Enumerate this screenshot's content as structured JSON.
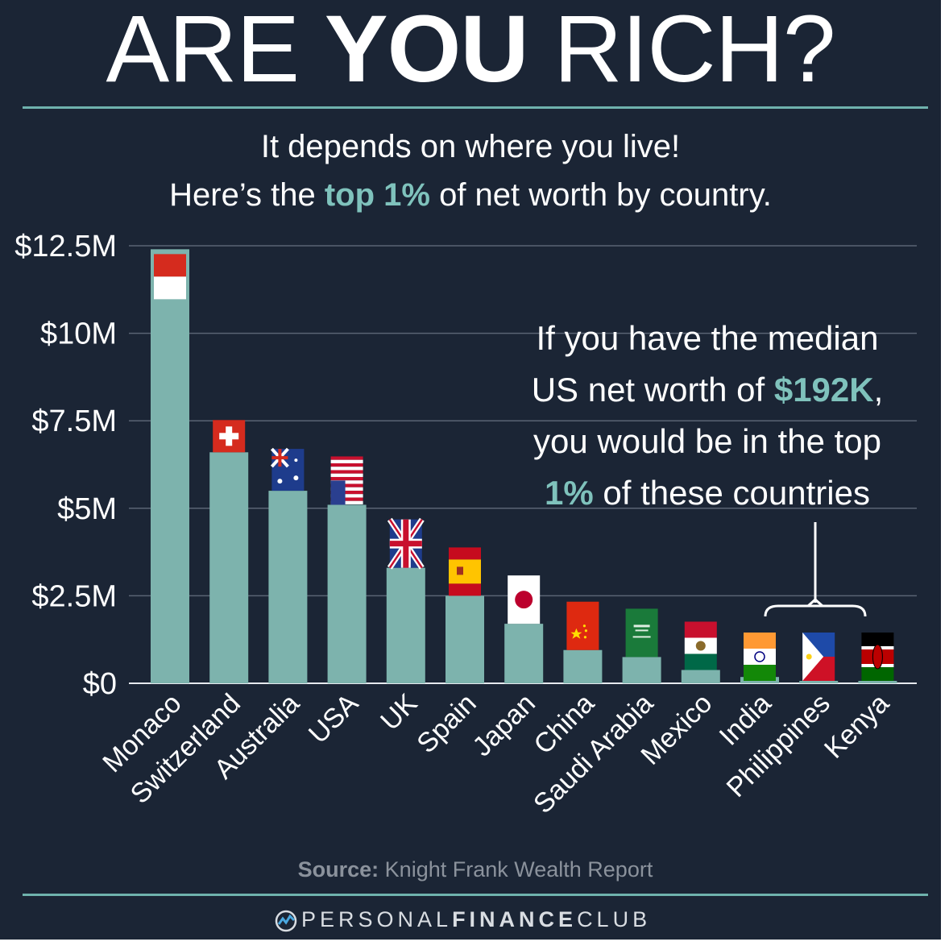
{
  "title": {
    "part1": "ARE ",
    "part2": "YOU",
    "part3": " RICH?"
  },
  "subtitle": {
    "line1": "It depends on where you live!",
    "line2_prefix": "Here’s the ",
    "line2_accent": "top 1%",
    "line2_suffix": " of net worth by country."
  },
  "callout": {
    "line1": "If you have the median",
    "line2_prefix": "US net worth of ",
    "line2_accent": "$192K",
    "line2_suffix": ",",
    "line3": "you would be in the top",
    "line4_accent": "1%",
    "line4_suffix": " of these countries"
  },
  "source": {
    "label": "Source:",
    "text": " Knight Frank Wealth Report"
  },
  "brand": {
    "light1": "PERSONAL",
    "bold": "FINANCE",
    "light2": "CLUB"
  },
  "colors": {
    "background": "#1b2535",
    "bar": "#7db3ad",
    "accent": "#7fc2bc",
    "grid": "#5a6474"
  },
  "chart_data": {
    "type": "bar",
    "categories": [
      "Monaco",
      "Switzerland",
      "Australia",
      "USA",
      "UK",
      "Spain",
      "Japan",
      "China",
      "Saudi Arabia",
      "Mexico",
      "India",
      "Philippines",
      "Kenya"
    ],
    "values": [
      12.4,
      6.6,
      5.5,
      5.1,
      3.3,
      2.5,
      1.7,
      0.95,
      0.75,
      0.38,
      0.18,
      0.06,
      0.05
    ],
    "unit": "millions USD",
    "ylim": [
      0,
      12.5
    ],
    "yticks": [
      0,
      2.5,
      5,
      7.5,
      10,
      12.5
    ],
    "ytick_labels": [
      "$0",
      "$2.5M",
      "$5M",
      "$7.5M",
      "$10M",
      "$12.5M"
    ],
    "grid": true,
    "flags": [
      "monaco-flag",
      "switzerland-flag",
      "australia-flag",
      "usa-flag",
      "uk-flag",
      "spain-flag",
      "japan-flag",
      "china-flag",
      "saudi-arabia-flag",
      "mexico-flag",
      "india-flag",
      "philippines-flag",
      "kenya-flag"
    ],
    "highlighted": [
      "India",
      "Philippines",
      "Kenya"
    ]
  }
}
